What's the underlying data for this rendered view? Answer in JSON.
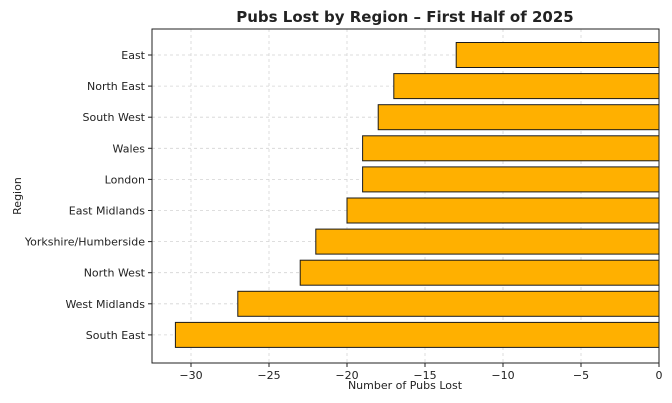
{
  "chart_data": {
    "type": "bar",
    "orientation": "horizontal",
    "title": "Pubs Lost by Region – First Half of 2025",
    "xlabel": "Number of Pubs Lost",
    "ylabel": "Region",
    "categories": [
      "East",
      "North East",
      "South West",
      "Wales",
      "London",
      "East Midlands",
      "Yorkshire/Humberside",
      "North West",
      "West Midlands",
      "South East"
    ],
    "values": [
      -13,
      -17,
      -18,
      -19,
      -19,
      -20,
      -22,
      -23,
      -27,
      -31
    ],
    "xlim": [
      -32.5,
      0
    ],
    "xticks": [
      -30,
      -25,
      -20,
      -15,
      -10,
      -5,
      0
    ],
    "xtick_labels": [
      "−30",
      "−25",
      "−20",
      "−15",
      "−10",
      "−5",
      "0"
    ],
    "grid": true,
    "bar_color": "#FFB000",
    "edge_color": "#1a1a1a"
  }
}
